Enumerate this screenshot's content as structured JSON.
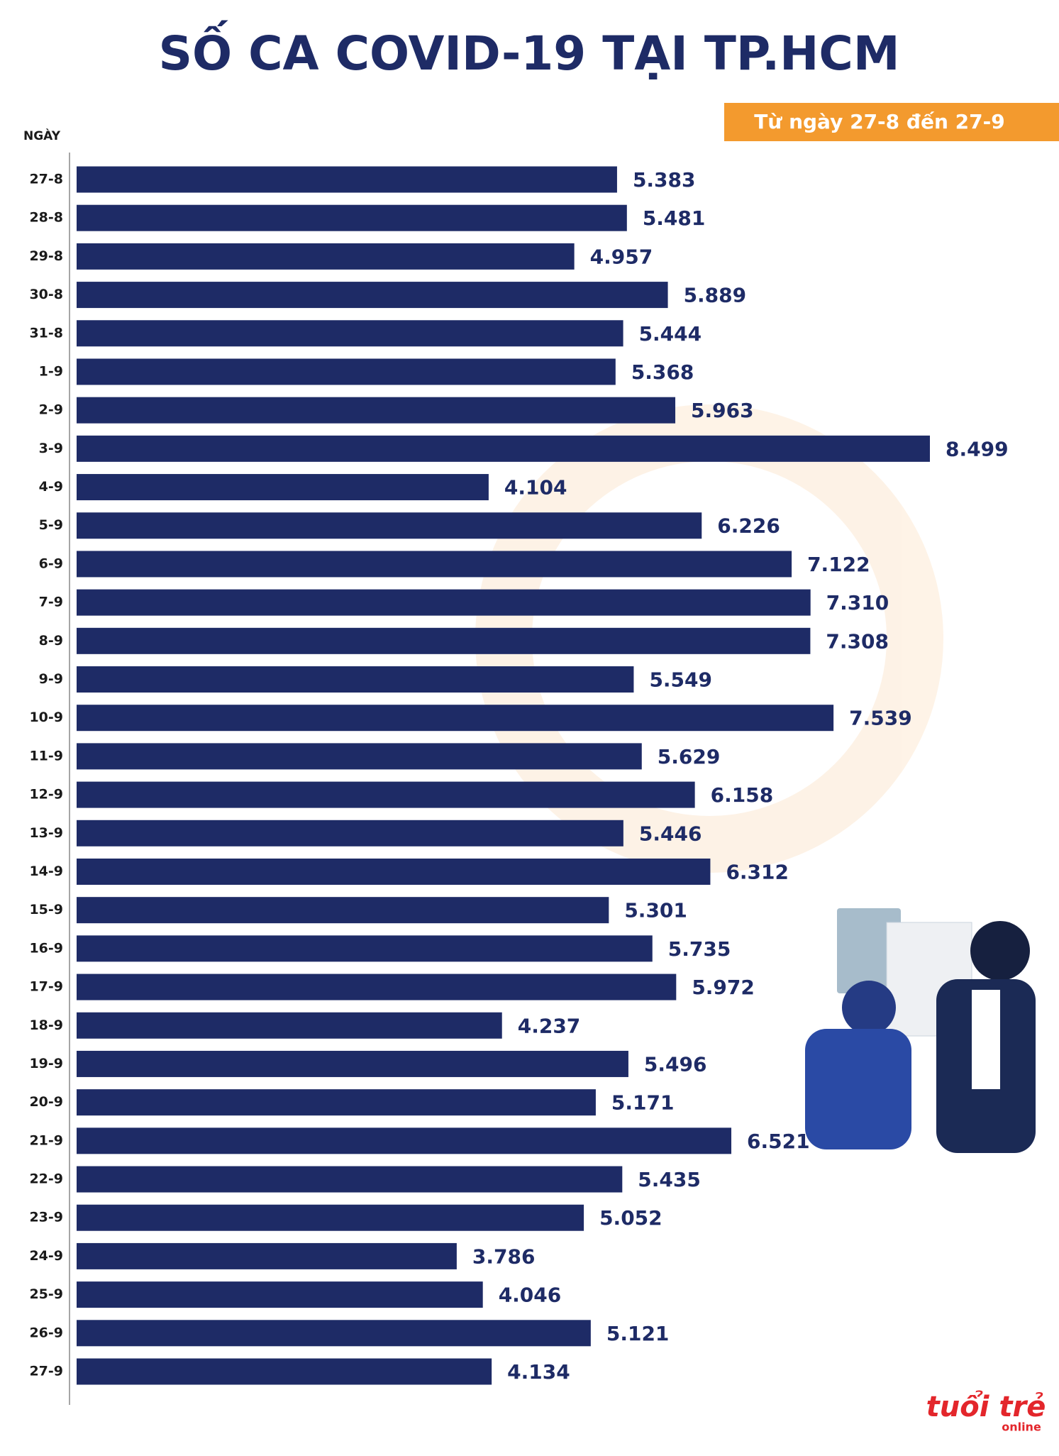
{
  "chart_data": {
    "type": "bar",
    "orientation": "horizontal",
    "title": "SỐ CA COVID-19 TẠI TP.HCM",
    "subtitle": "Từ ngày 27-8 đến 27-9",
    "y_label": "NGÀY",
    "color": "#1e2b66",
    "categories": [
      "27-8",
      "28-8",
      "29-8",
      "30-8",
      "31-8",
      "1-9",
      "2-9",
      "3-9",
      "4-9",
      "5-9",
      "6-9",
      "7-9",
      "8-9",
      "9-9",
      "10-9",
      "11-9",
      "12-9",
      "13-9",
      "14-9",
      "15-9",
      "16-9",
      "17-9",
      "18-9",
      "19-9",
      "20-9",
      "21-9",
      "22-9",
      "23-9",
      "24-9",
      "25-9",
      "26-9",
      "27-9"
    ],
    "values": [
      5383,
      5481,
      4957,
      5889,
      5444,
      5368,
      5963,
      8499,
      4104,
      6226,
      7122,
      7310,
      7308,
      5549,
      7539,
      5629,
      6158,
      5446,
      6312,
      5301,
      5735,
      5972,
      4237,
      5496,
      5171,
      6521,
      5435,
      5052,
      3786,
      4046,
      5121,
      4134
    ],
    "value_labels": [
      "5.383",
      "5.481",
      "4.957",
      "5.889",
      "5.444",
      "5.368",
      "5.963",
      "8.499",
      "4.104",
      "6.226",
      "7.122",
      "7.310",
      "7.308",
      "5.549",
      "7.539",
      "5.629",
      "6.158",
      "5.446",
      "6.312",
      "5.301",
      "5.735",
      "5.972",
      "4.237",
      "5.496",
      "5.171",
      "6.521",
      "5.435",
      "5.052",
      "3.786",
      "4.046",
      "5.121",
      "4.134"
    ],
    "logo": {
      "main": "tuổi trẻ",
      "sub": "online"
    }
  }
}
